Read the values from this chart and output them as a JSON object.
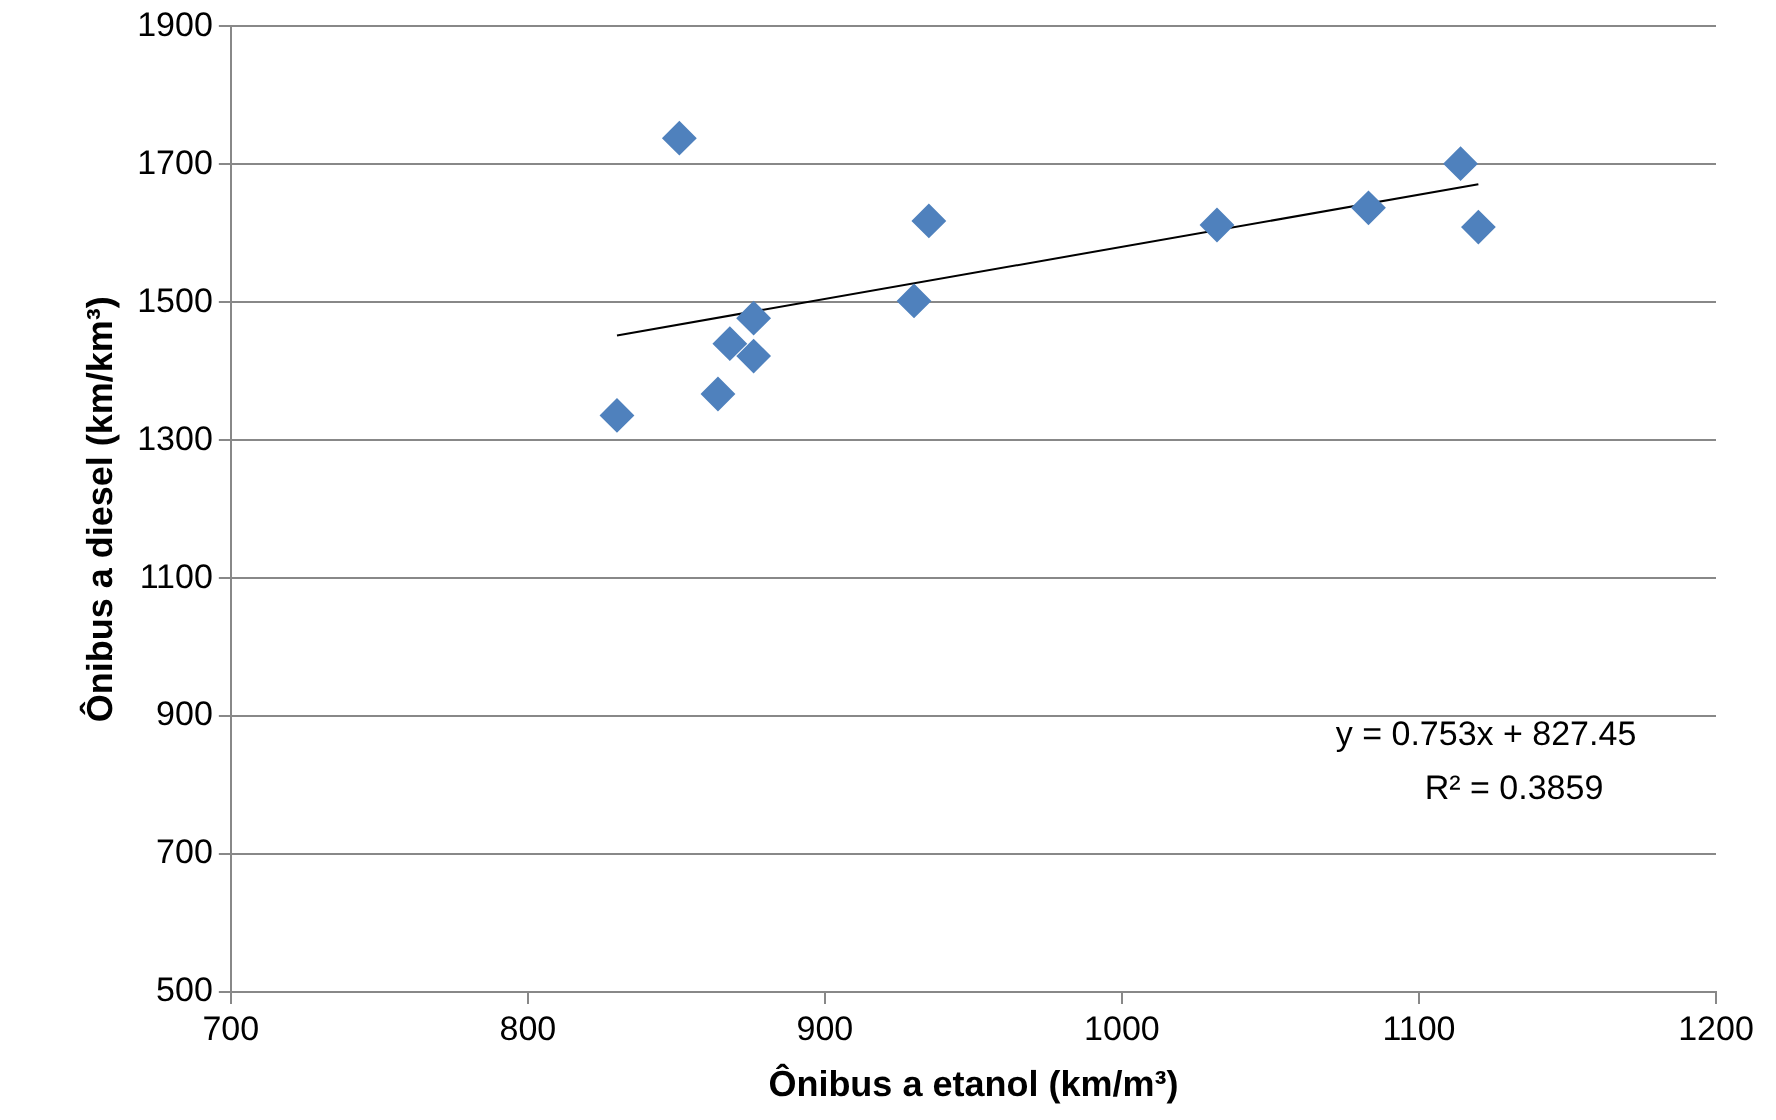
{
  "chart_data": {
    "type": "scatter",
    "xlabel": "Ônibus a etanol (km/m³)",
    "ylabel": "Ônibus a diesel (km/km³)",
    "xlim": [
      700,
      1200
    ],
    "xticks": [
      700,
      800,
      900,
      1000,
      1100,
      1200
    ],
    "ylim": [
      500,
      1900
    ],
    "yticks": [
      500,
      700,
      900,
      1100,
      1300,
      1500,
      1700,
      1900
    ],
    "grid": "y",
    "legend": false,
    "series": [
      {
        "marker": "diamond",
        "color": "#4f81bd",
        "x": [
          851,
          830,
          864,
          868,
          876,
          876,
          930,
          935,
          1032,
          1083,
          1114,
          1120
        ],
        "values": [
          1738,
          1336,
          1367,
          1440,
          1422,
          1477,
          1502,
          1618,
          1612,
          1637,
          1701,
          1609
        ]
      },
      {
        "type": "line",
        "color": "#000000",
        "x": [
          830,
          1120
        ],
        "values": [
          1452,
          1671
        ]
      }
    ],
    "annotations": [
      "y = 0.753x + 827.45",
      "R² = 0.3859"
    ]
  }
}
